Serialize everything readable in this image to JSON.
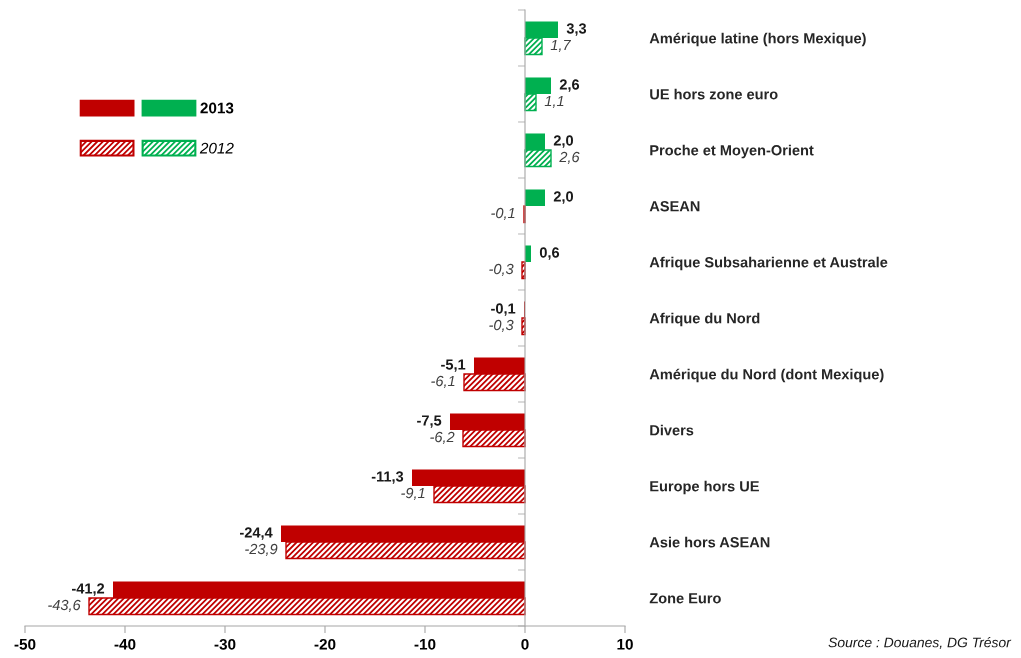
{
  "chart_data": {
    "type": "bar",
    "orientation": "horizontal",
    "categories": [
      "Amérique latine (hors Mexique)",
      "UE hors zone euro",
      "Proche et Moyen-Orient",
      "ASEAN",
      "Afrique Subsaharienne et Australe",
      "Afrique du Nord",
      "Amérique du Nord (dont Mexique)",
      "Divers",
      "Europe hors UE",
      "Asie hors ASEAN",
      "Zone Euro"
    ],
    "series": [
      {
        "name": "2013",
        "colors": [
          "#00b050",
          "#00b050",
          "#00b050",
          "#00b050",
          "#00b050",
          "#c00000",
          "#c00000",
          "#c00000",
          "#c00000",
          "#c00000",
          "#c00000"
        ],
        "values": [
          3.3,
          2.6,
          2.0,
          2.0,
          0.6,
          -0.1,
          -5.1,
          -7.5,
          -11.3,
          -24.4,
          -41.2
        ],
        "value_labels": [
          "3,3",
          "2,6",
          "2,0",
          "2,0",
          "0,6",
          "-0,1",
          "-5,1",
          "-7,5",
          "-11,3",
          "-24,4",
          "-41,2"
        ]
      },
      {
        "name": "2012",
        "colors": [
          "#00b050",
          "#00b050",
          "#00b050",
          "#c00000",
          "#c00000",
          "#c00000",
          "#c00000",
          "#c00000",
          "#c00000",
          "#c00000",
          "#c00000"
        ],
        "values": [
          1.7,
          1.1,
          2.6,
          -0.1,
          -0.3,
          -0.3,
          -6.1,
          -6.2,
          -9.1,
          -23.9,
          -43.6
        ],
        "value_labels": [
          "1,7",
          "1,1",
          "2,6",
          "-0,1",
          "-0,3",
          "-0,3",
          "-6,1",
          "-6,2",
          "-9,1",
          "-23,9",
          "-43,6"
        ]
      }
    ],
    "xlim": [
      -50,
      10
    ],
    "xticks": [
      -50,
      -40,
      -30,
      -20,
      -10,
      0,
      10
    ],
    "legend": "top left",
    "annotations": [
      "Source : Douanes, DG Trésor"
    ]
  }
}
